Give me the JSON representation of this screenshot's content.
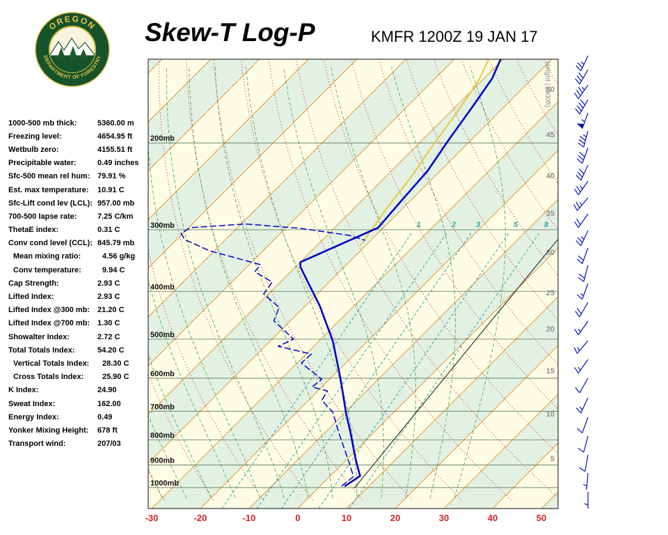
{
  "header": {
    "title": "Skew-T Log-P",
    "station_line": "KMFR 1200Z 19 JAN 17",
    "logo": {
      "top_text": "OREGON",
      "bottom_text": "DEPARTMENT OF FORESTRY"
    }
  },
  "stats": [
    {
      "label": "1000-500 mb thick:",
      "value": "5360.00 m",
      "indent": false
    },
    {
      "label": "Freezing level:",
      "value": "4654.95 ft",
      "indent": false
    },
    {
      "label": "Wetbulb zero:",
      "value": "4155.51 ft",
      "indent": false
    },
    {
      "label": "Precipitable water:",
      "value": "0.49 inches",
      "indent": false
    },
    {
      "label": "Sfc-500 mean rel hum:",
      "value": "79.91 %",
      "indent": false
    },
    {
      "label": "Est. max temperature:",
      "value": "10.91 C",
      "indent": false
    },
    {
      "label": "Sfc-Lift cond lev (LCL):",
      "value": "957.00 mb",
      "indent": false
    },
    {
      "label": "700-500 lapse rate:",
      "value": "7.25 C/km",
      "indent": false
    },
    {
      "label": "ThetaE index:",
      "value": "0.31 C",
      "indent": false
    },
    {
      "label": "Conv cond level (CCL):",
      "value": "845.79 mb",
      "indent": false
    },
    {
      "label": "Mean mixing ratio:",
      "value": "4.56 g/kg",
      "indent": true
    },
    {
      "label": "Conv temperature:",
      "value": "9.94 C",
      "indent": true
    },
    {
      "label": "Cap Strength:",
      "value": "2.93 C",
      "indent": false
    },
    {
      "label": "Lifted Index:",
      "value": "2.93 C",
      "indent": false
    },
    {
      "label": "Lifted Index @300 mb:",
      "value": "21.20 C",
      "indent": false
    },
    {
      "label": "Lifted Index @700 mb:",
      "value": "1.30 C",
      "indent": false
    },
    {
      "label": "Showalter Index:",
      "value": "2.72 C",
      "indent": false
    },
    {
      "label": "Total Totals Index:",
      "value": "54.20 C",
      "indent": false
    },
    {
      "label": "Vertical Totals Index:",
      "value": "28.30 C",
      "indent": true
    },
    {
      "label": "Cross Totals Index:",
      "value": "25.90 C",
      "indent": true
    },
    {
      "label": "K Index:",
      "value": "24.90",
      "indent": false
    },
    {
      "label": "Sweat Index:",
      "value": "162.00",
      "indent": false
    },
    {
      "label": "Energy Index:",
      "value": "0.49",
      "indent": false
    },
    {
      "label": "Yonker Mixing Height:",
      "value": "678 ft",
      "indent": false
    },
    {
      "label": "Transport wind:",
      "value": "207/03",
      "indent": false
    }
  ],
  "chart_data": {
    "type": "line",
    "title": "Skew-T Log-P sounding",
    "x_axis": {
      "unit": "C",
      "ticks": [
        -30,
        -20,
        -10,
        0,
        10,
        20,
        30,
        40,
        50
      ]
    },
    "pressure_levels": [
      200,
      300,
      400,
      500,
      600,
      700,
      800,
      900,
      1000
    ],
    "height_axis": {
      "label": "Height (1000ft)",
      "labels": [
        [
          50,
          128
        ],
        [
          45,
          193
        ],
        [
          40,
          252
        ],
        [
          35,
          306
        ],
        [
          30,
          362
        ],
        [
          25,
          420
        ],
        [
          20,
          472
        ],
        [
          15,
          532
        ],
        [
          10,
          594
        ],
        [
          5,
          658
        ]
      ]
    },
    "mixing_ratio_lines": [
      {
        "value": 1,
        "td": -15.6
      },
      {
        "value": 2,
        "td": -8.4
      },
      {
        "value": 3,
        "td": -3.4
      },
      {
        "value": 5,
        "td": 4.3
      },
      {
        "value": 8,
        "td": 10.6
      }
    ],
    "series": [
      {
        "name": "reference_line",
        "style": "solid",
        "color": "#222222",
        "points": [
          [
            1001,
            7.4
          ],
          [
            310,
            -1.9
          ]
        ]
      },
      {
        "name": "wet_bulb",
        "style": "solid",
        "color": "#E3C93F",
        "points": [
          [
            322,
            -41.1
          ],
          [
            272,
            -43.3
          ],
          [
            235,
            -44.7
          ],
          [
            200,
            -46.9
          ],
          [
            173,
            -48.6
          ],
          [
            149,
            -50.7
          ],
          [
            135,
            -53.0
          ]
        ]
      },
      {
        "name": "dewpoint",
        "style": "dashed",
        "color": "#0000C8",
        "points": [
          [
            992,
            4.4
          ],
          [
            950,
            4.9
          ],
          [
            873,
            0.0
          ],
          [
            784,
            -6.4
          ],
          [
            703,
            -12.6
          ],
          [
            665,
            -17.3
          ],
          [
            637,
            -18.0
          ],
          [
            625,
            -22.0
          ],
          [
            603,
            -21.6
          ],
          [
            559,
            -29.1
          ],
          [
            536,
            -28.9
          ],
          [
            517,
            -37.3
          ],
          [
            500,
            -35.6
          ],
          [
            459,
            -43.4
          ],
          [
            431,
            -45.1
          ],
          [
            405,
            -51.0
          ],
          [
            383,
            -51.7
          ],
          [
            365,
            -57.4
          ],
          [
            353,
            -57.7
          ],
          [
            331,
            -70.9
          ],
          [
            314,
            -78.4
          ],
          [
            305,
            -80.4
          ],
          [
            297,
            -79.6
          ],
          [
            292,
            -69.1
          ],
          [
            298,
            -56.9
          ],
          [
            308,
            -45.4
          ],
          [
            315,
            -41.3
          ]
        ]
      },
      {
        "name": "temperature",
        "style": "solid",
        "color": "#0000C8",
        "points": [
          [
            992,
            5.1
          ],
          [
            947,
            6.1
          ],
          [
            880,
            2.0
          ],
          [
            770,
            -5.0
          ],
          [
            703,
            -9.9
          ],
          [
            601,
            -17.9
          ],
          [
            505,
            -27.1
          ],
          [
            429,
            -36.9
          ],
          [
            357,
            -49.0
          ],
          [
            349,
            -50.0
          ],
          [
            297,
            -41.1
          ],
          [
            260,
            -41.9
          ],
          [
            228,
            -42.6
          ],
          [
            196,
            -44.7
          ],
          [
            168,
            -46.6
          ],
          [
            148,
            -48.3
          ],
          [
            132,
            -51.1
          ]
        ]
      }
    ],
    "wind_barbs": {
      "color": "#0011BB",
      "barbs": [
        [
          80,
          205,
          25
        ],
        [
          100,
          210,
          30
        ],
        [
          122,
          215,
          35
        ],
        [
          143,
          210,
          40
        ],
        [
          162,
          200,
          55
        ],
        [
          188,
          195,
          35
        ],
        [
          212,
          200,
          30
        ],
        [
          237,
          205,
          30
        ],
        [
          260,
          215,
          25
        ],
        [
          284,
          220,
          25
        ],
        [
          307,
          215,
          20
        ],
        [
          331,
          205,
          25
        ],
        [
          356,
          200,
          20
        ],
        [
          381,
          195,
          20
        ],
        [
          407,
          200,
          15
        ],
        [
          434,
          210,
          20
        ],
        [
          461,
          215,
          15
        ],
        [
          489,
          220,
          15
        ],
        [
          516,
          215,
          15
        ],
        [
          543,
          210,
          10
        ],
        [
          571,
          205,
          15
        ],
        [
          599,
          200,
          10
        ],
        [
          626,
          195,
          10
        ],
        [
          653,
          190,
          10
        ],
        [
          679,
          185,
          5
        ],
        [
          706,
          180,
          5
        ]
      ]
    },
    "colors": {
      "band_cream": "#FFFCE6",
      "band_green": "#E3F1E3",
      "isotherm": "#E39A3B",
      "dry_adiabat": "#CC4444",
      "moist_adiabat": "#55AA55",
      "mixing_ratio": "#2BA8A2",
      "pressure_line": "#567856",
      "axis_label": "#CC2222",
      "pressure_label": "#111111",
      "height_label": "#8F8F8F",
      "border": "#333333"
    }
  }
}
